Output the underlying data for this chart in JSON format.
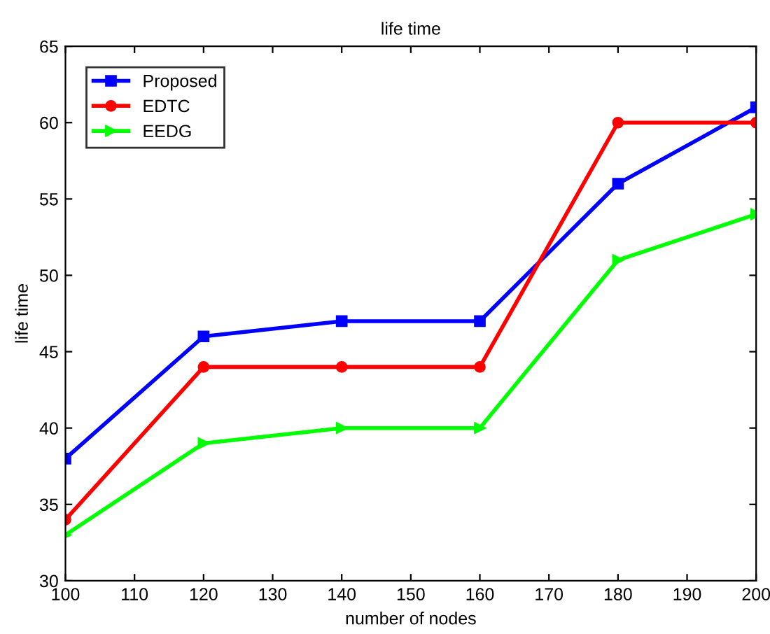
{
  "chart_data": {
    "type": "line",
    "title": "life time",
    "xlabel": "number of nodes",
    "ylabel": "life time",
    "x": [
      100,
      120,
      140,
      160,
      180,
      200
    ],
    "series": [
      {
        "name": "Proposed",
        "color": "#0000ff",
        "marker": "square",
        "values": [
          38,
          46,
          47,
          47,
          56,
          61
        ]
      },
      {
        "name": "EDTC",
        "color": "#ff0000",
        "marker": "circle",
        "values": [
          34,
          44,
          44,
          44,
          60,
          60
        ]
      },
      {
        "name": "EEDG",
        "color": "#00ff00",
        "marker": "triangle",
        "values": [
          33,
          39,
          40,
          40,
          51,
          54
        ]
      }
    ],
    "xlim": [
      100,
      200
    ],
    "xticks": [
      100,
      110,
      120,
      130,
      140,
      150,
      160,
      170,
      180,
      190,
      200
    ],
    "ylim": [
      30,
      65
    ],
    "yticks": [
      30,
      35,
      40,
      45,
      50,
      55,
      60,
      65
    ],
    "grid": false,
    "legend": "top left",
    "line_style": "solid"
  }
}
